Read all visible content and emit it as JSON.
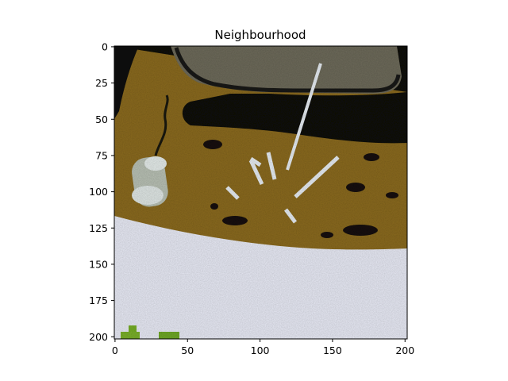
{
  "chart_data": {
    "type": "image",
    "title": "Neighbourhood",
    "xlabel": "",
    "ylabel": "",
    "xlim": [
      -0.5,
      201.5
    ],
    "ylim": [
      201.5,
      -0.5
    ],
    "x_ticks": [
      0,
      50,
      100,
      150,
      200
    ],
    "y_ticks": [
      0,
      25,
      50,
      75,
      100,
      125,
      150,
      175,
      200
    ],
    "grid": false,
    "image_content": {
      "description_regions": [
        {
          "name": "dark-top-band",
          "color": "#0c0a08"
        },
        {
          "name": "gray-vehicle-top",
          "color": "#6e6a5c"
        },
        {
          "name": "olive-ground",
          "color": "#8a6a1e"
        },
        {
          "name": "white-floor",
          "color": "#e6e8f4"
        },
        {
          "name": "green-bits",
          "color": "#7ab02a"
        }
      ]
    }
  }
}
